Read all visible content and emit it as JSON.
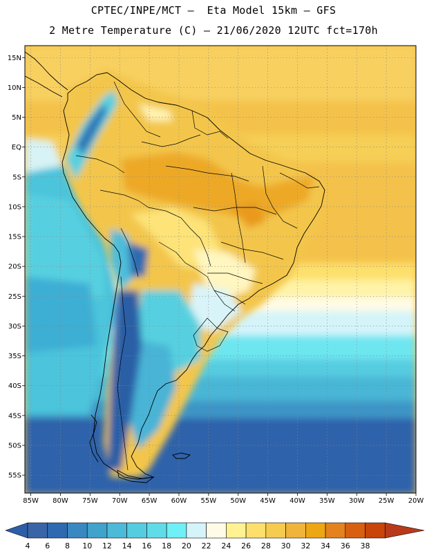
{
  "header": {
    "title_line1": "CPTEC/INPE/MCT –  Eta Model 15km – GFS",
    "title_line2": "2 Metre Temperature (C) – 21/06/2020 12UTC fct=170h"
  },
  "map": {
    "lon_range": [
      -86,
      -20
    ],
    "lat_range": [
      -58,
      17
    ],
    "lon_ticks": [
      {
        "value": -85,
        "label": "85W"
      },
      {
        "value": -80,
        "label": "80W"
      },
      {
        "value": -75,
        "label": "75W"
      },
      {
        "value": -70,
        "label": "70W"
      },
      {
        "value": -65,
        "label": "65W"
      },
      {
        "value": -60,
        "label": "60W"
      },
      {
        "value": -55,
        "label": "55W"
      },
      {
        "value": -50,
        "label": "50W"
      },
      {
        "value": -45,
        "label": "45W"
      },
      {
        "value": -40,
        "label": "40W"
      },
      {
        "value": -35,
        "label": "35W"
      },
      {
        "value": -30,
        "label": "30W"
      },
      {
        "value": -25,
        "label": "25W"
      },
      {
        "value": -20,
        "label": "20W"
      }
    ],
    "lat_ticks": [
      {
        "value": 15,
        "label": "15N"
      },
      {
        "value": 10,
        "label": "10N"
      },
      {
        "value": 5,
        "label": "5N"
      },
      {
        "value": 0,
        "label": "EQ"
      },
      {
        "value": -5,
        "label": "5S"
      },
      {
        "value": -10,
        "label": "10S"
      },
      {
        "value": -15,
        "label": "15S"
      },
      {
        "value": -20,
        "label": "20S"
      },
      {
        "value": -25,
        "label": "25S"
      },
      {
        "value": -30,
        "label": "30S"
      },
      {
        "value": -35,
        "label": "35S"
      },
      {
        "value": -40,
        "label": "40S"
      },
      {
        "value": -45,
        "label": "45S"
      },
      {
        "value": -50,
        "label": "50S"
      },
      {
        "value": -55,
        "label": "55S"
      }
    ],
    "grid": "dotted"
  },
  "colorbar": {
    "labels": [
      "4",
      "6",
      "8",
      "10",
      "12",
      "14",
      "16",
      "18",
      "20",
      "22",
      "24",
      "26",
      "28",
      "30",
      "32",
      "34",
      "36",
      "38"
    ],
    "colors": [
      "#3a64a8",
      "#2f6ab0",
      "#3a88c2",
      "#3fa3cb",
      "#4cbad8",
      "#56cce0",
      "#60dce8",
      "#6ef0f6",
      "#d4f4fa",
      "#fffbe6",
      "#fef293",
      "#fde06c",
      "#f5cc50",
      "#f0b43c",
      "#eda614",
      "#e4821e",
      "#d85f10",
      "#c84408",
      "#b83a1a"
    ],
    "below_color": "#2f5ea8",
    "above_color": "#b83a1a"
  }
}
